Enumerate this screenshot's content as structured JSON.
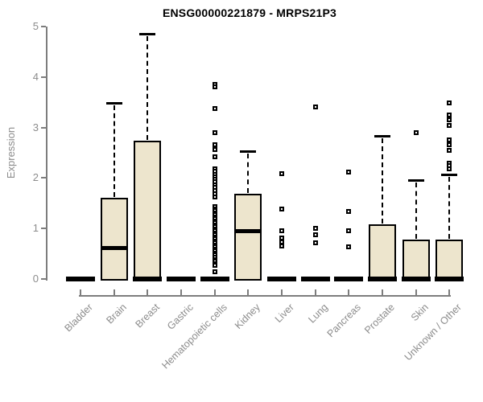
{
  "chart_data": {
    "type": "boxplot",
    "title": "ENSG00000221879 - MRPS21P3",
    "ylabel": "Expression",
    "xlabel": "",
    "ylim": [
      0,
      5
    ],
    "yticks": [
      "0",
      "1",
      "2",
      "3",
      "4",
      "5"
    ],
    "grid": false,
    "legend": "none",
    "colors": {
      "box_fill": "#EDE5CD",
      "box_border": "#000000",
      "whisker": "#000000",
      "axis": "#7D7D7D",
      "tick_text": "#8C8C8C",
      "title_text": "#000000",
      "background": "#FFFFFF"
    },
    "categories": [
      "Bladder",
      "Brain",
      "Breast",
      "Gastric",
      "Hematopoietic cells",
      "Kidney",
      "Liver",
      "Lung",
      "Pancreas",
      "Prostate",
      "Skin",
      "Unknown / Other"
    ],
    "boxes": [
      {
        "category": "Bladder",
        "q1": 0,
        "median": 0,
        "q3": 0,
        "whisker_low": 0,
        "whisker_high": 0,
        "outliers": []
      },
      {
        "category": "Brain",
        "q1": 0,
        "median": 0.62,
        "q3": 1.61,
        "whisker_low": 0,
        "whisker_high": 3.49,
        "outliers": []
      },
      {
        "category": "Breast",
        "q1": 0,
        "median": 0,
        "q3": 2.74,
        "whisker_low": 0,
        "whisker_high": 4.85,
        "outliers": []
      },
      {
        "category": "Gastric",
        "q1": 0,
        "median": 0,
        "q3": 0,
        "whisker_low": 0,
        "whisker_high": 0,
        "outliers": []
      },
      {
        "category": "Hematopoietic cells",
        "q1": 0,
        "median": 0,
        "q3": 0,
        "whisker_low": 0,
        "whisker_high": 0,
        "outliers": [
          3.86,
          3.81,
          3.38,
          2.9,
          2.66,
          2.57,
          2.42,
          2.18,
          2.13,
          2.07,
          2.02,
          1.97,
          1.92,
          1.86,
          1.81,
          1.75,
          1.69,
          1.63,
          1.43,
          1.39,
          1.35,
          1.31,
          1.27,
          1.23,
          1.19,
          1.15,
          1.11,
          1.07,
          1.03,
          0.99,
          0.95,
          0.91,
          0.87,
          0.83,
          0.79,
          0.75,
          0.71,
          0.67,
          0.63,
          0.59,
          0.55,
          0.51,
          0.47,
          0.43,
          0.39,
          0.35,
          0.31,
          0.27,
          0.14
        ]
      },
      {
        "category": "Kidney",
        "q1": 0,
        "median": 0.96,
        "q3": 1.68,
        "whisker_low": 0,
        "whisker_high": 2.53,
        "outliers": []
      },
      {
        "category": "Liver",
        "q1": 0,
        "median": 0,
        "q3": 0,
        "whisker_low": 0,
        "whisker_high": 0,
        "outliers": [
          2.09,
          1.39,
          0.96,
          0.81,
          0.73,
          0.65
        ]
      },
      {
        "category": "Lung",
        "q1": 0,
        "median": 0,
        "q3": 0,
        "whisker_low": 0,
        "whisker_high": 0,
        "outliers": [
          3.41,
          1.01,
          0.88,
          0.71
        ]
      },
      {
        "category": "Pancreas",
        "q1": 0,
        "median": 0,
        "q3": 0,
        "whisker_low": 0,
        "whisker_high": 0,
        "outliers": [
          2.11,
          1.34,
          0.96,
          0.64
        ]
      },
      {
        "category": "Prostate",
        "q1": 0,
        "median": 0,
        "q3": 1.09,
        "whisker_low": 0,
        "whisker_high": 2.84,
        "outliers": []
      },
      {
        "category": "Skin",
        "q1": 0,
        "median": 0,
        "q3": 0.78,
        "whisker_low": 0,
        "whisker_high": 1.96,
        "outliers": [
          2.9
        ]
      },
      {
        "category": "Unknown / Other",
        "q1": 0,
        "median": 0,
        "q3": 0.78,
        "whisker_low": 0,
        "whisker_high": 2.07,
        "outliers": [
          3.48,
          3.25,
          3.16,
          3.04,
          2.75,
          2.66,
          2.54,
          2.3,
          2.25,
          2.18
        ]
      }
    ]
  }
}
